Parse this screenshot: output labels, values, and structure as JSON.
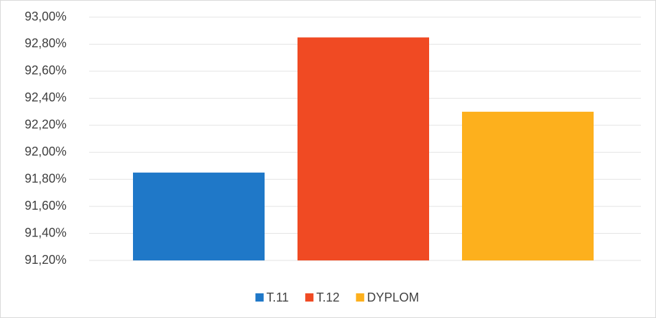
{
  "chart_data": {
    "type": "bar",
    "series": [
      {
        "name": "T.11",
        "color": "#1f78c8",
        "values": [
          91.85
        ]
      },
      {
        "name": "T.12",
        "color": "#f04a23",
        "values": [
          92.85
        ]
      },
      {
        "name": "DYPLOM",
        "color": "#fdb01d",
        "values": [
          92.3
        ]
      }
    ],
    "ylim": [
      91.2,
      93.0
    ],
    "yticks": [
      {
        "value": 91.2,
        "label": "91,20%"
      },
      {
        "value": 91.4,
        "label": "91,40%"
      },
      {
        "value": 91.6,
        "label": "91,60%"
      },
      {
        "value": 91.8,
        "label": "91,80%"
      },
      {
        "value": 92.0,
        "label": "92,00%"
      },
      {
        "value": 92.2,
        "label": "92,20%"
      },
      {
        "value": 92.4,
        "label": "92,40%"
      },
      {
        "value": 92.6,
        "label": "92,60%"
      },
      {
        "value": 92.8,
        "label": "92,80%"
      },
      {
        "value": 93.0,
        "label": "93,00%"
      }
    ],
    "grid": true,
    "legend": "bottom"
  }
}
